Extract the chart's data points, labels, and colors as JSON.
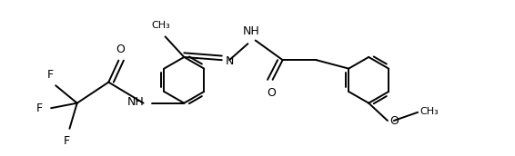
{
  "background_color": "#ffffff",
  "line_color": "#000000",
  "line_width": 1.4,
  "fig_width": 5.66,
  "fig_height": 1.72,
  "dpi": 100,
  "font_size": 9.0,
  "font_size_small": 8.0,
  "xlim": [
    0,
    10.5
  ],
  "ylim": [
    -1.5,
    2.2
  ]
}
